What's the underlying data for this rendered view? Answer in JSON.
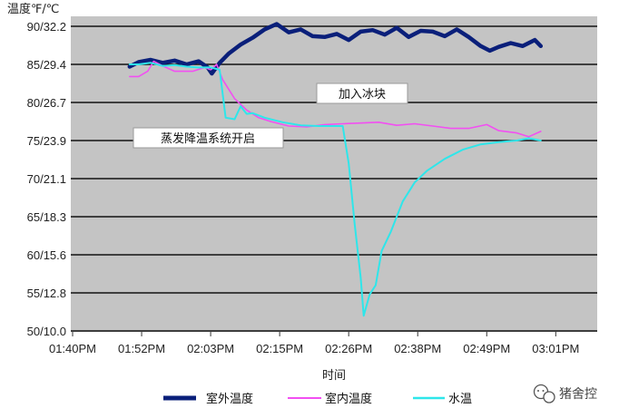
{
  "chart_data": {
    "type": "line",
    "ylabel": "温度℉/℃",
    "xlabel": "时间",
    "ylim": [
      50,
      90
    ],
    "xlim": [
      0,
      80
    ],
    "grid": true,
    "y_ticks": [
      {
        "value": 90,
        "label": "90/32.2"
      },
      {
        "value": 85,
        "label": "85/29.4"
      },
      {
        "value": 80,
        "label": "80/26.7"
      },
      {
        "value": 75,
        "label": "75/23.9"
      },
      {
        "value": 70,
        "label": "70/21.1"
      },
      {
        "value": 65,
        "label": "65/18.3"
      },
      {
        "value": 60,
        "label": "60/15.6"
      },
      {
        "value": 55,
        "label": "55/12.8"
      },
      {
        "value": 50,
        "label": "50/10.0"
      }
    ],
    "x_ticks": [
      {
        "value": 0,
        "label": "01:40PM"
      },
      {
        "value": 11.5,
        "label": "01:52PM"
      },
      {
        "value": 23,
        "label": "02:03PM"
      },
      {
        "value": 34.5,
        "label": "02:15PM"
      },
      {
        "value": 46,
        "label": "02:26PM"
      },
      {
        "value": 57.5,
        "label": "02:38PM"
      },
      {
        "value": 69,
        "label": "02:49PM"
      },
      {
        "value": 80.5,
        "label": "03:01PM"
      }
    ],
    "series": [
      {
        "name": "室外温度",
        "color": "#0a1f7a",
        "points": [
          [
            9.5,
            84.7
          ],
          [
            11,
            85.3
          ],
          [
            13,
            85.6
          ],
          [
            15,
            85.2
          ],
          [
            17,
            85.5
          ],
          [
            19,
            85.0
          ],
          [
            21,
            85.4
          ],
          [
            22.5,
            84.6
          ],
          [
            23.2,
            83.8
          ],
          [
            24.5,
            85.2
          ],
          [
            26,
            86.4
          ],
          [
            28,
            87.6
          ],
          [
            30,
            88.5
          ],
          [
            32,
            89.6
          ],
          [
            34,
            90.3
          ],
          [
            36,
            89.2
          ],
          [
            38,
            89.6
          ],
          [
            40,
            88.7
          ],
          [
            42,
            88.6
          ],
          [
            44,
            89.0
          ],
          [
            46,
            88.2
          ],
          [
            48,
            89.3
          ],
          [
            50,
            89.5
          ],
          [
            52,
            88.9
          ],
          [
            54,
            89.8
          ],
          [
            56,
            88.6
          ],
          [
            58,
            89.4
          ],
          [
            60,
            89.3
          ],
          [
            62,
            88.7
          ],
          [
            64,
            89.6
          ],
          [
            66,
            88.6
          ],
          [
            68,
            87.4
          ],
          [
            69.5,
            86.8
          ],
          [
            71,
            87.3
          ],
          [
            73,
            87.8
          ],
          [
            75,
            87.4
          ],
          [
            77,
            88.2
          ],
          [
            78,
            87.4
          ]
        ]
      },
      {
        "name": "室内温度",
        "color": "#f24ff2",
        "points": [
          [
            9.5,
            83.4
          ],
          [
            11,
            83.4
          ],
          [
            12.5,
            84.1
          ],
          [
            13.5,
            85.4
          ],
          [
            15,
            84.8
          ],
          [
            17,
            84.1
          ],
          [
            20,
            84.1
          ],
          [
            22,
            84.6
          ],
          [
            23,
            84.3
          ],
          [
            24,
            85.0
          ],
          [
            25,
            83.0
          ],
          [
            27,
            80.5
          ],
          [
            29,
            79.0
          ],
          [
            31,
            78.0
          ],
          [
            33,
            77.5
          ],
          [
            36,
            76.9
          ],
          [
            39,
            76.8
          ],
          [
            42,
            77.1
          ],
          [
            45,
            77.2
          ],
          [
            48,
            77.3
          ],
          [
            51,
            77.4
          ],
          [
            54,
            77.0
          ],
          [
            57,
            77.2
          ],
          [
            60,
            76.9
          ],
          [
            63,
            76.6
          ],
          [
            66,
            76.6
          ],
          [
            69,
            77.1
          ],
          [
            71,
            76.3
          ],
          [
            74,
            76.0
          ],
          [
            76,
            75.5
          ],
          [
            78,
            76.2
          ]
        ]
      },
      {
        "name": "水温",
        "color": "#2ee6ea",
        "points": [
          [
            9.5,
            85.0
          ],
          [
            11,
            85.0
          ],
          [
            13,
            85.2
          ],
          [
            15,
            84.8
          ],
          [
            17,
            84.9
          ],
          [
            19,
            84.7
          ],
          [
            21,
            84.6
          ],
          [
            23,
            84.6
          ],
          [
            24.5,
            84.3
          ],
          [
            25.5,
            78.0
          ],
          [
            27,
            77.8
          ],
          [
            28,
            79.5
          ],
          [
            29,
            78.5
          ],
          [
            30,
            78.6
          ],
          [
            32,
            78.0
          ],
          [
            35,
            77.4
          ],
          [
            38,
            77.0
          ],
          [
            41,
            76.9
          ],
          [
            44,
            76.9
          ],
          [
            45,
            76.9
          ],
          [
            46,
            72.0
          ],
          [
            47,
            64.0
          ],
          [
            48,
            57.0
          ],
          [
            48.5,
            52.0
          ],
          [
            49.5,
            54.8
          ],
          [
            50.5,
            56.0
          ],
          [
            51.5,
            60.5
          ],
          [
            53,
            63.0
          ],
          [
            55,
            67.0
          ],
          [
            57,
            69.5
          ],
          [
            59,
            71.0
          ],
          [
            62,
            72.6
          ],
          [
            65,
            73.8
          ],
          [
            68,
            74.5
          ],
          [
            71,
            74.8
          ],
          [
            74,
            75.0
          ],
          [
            76,
            75.3
          ],
          [
            78,
            75.0
          ]
        ]
      }
    ],
    "annotations": [
      {
        "text": "加入冰块"
      },
      {
        "text": "蒸发降温系统开启"
      }
    ]
  },
  "watermark": "猪舍控"
}
